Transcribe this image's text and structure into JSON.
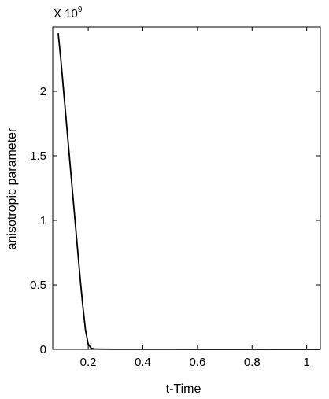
{
  "chart_data": {
    "type": "line",
    "title": "",
    "xlabel": "t-Time",
    "ylabel": "anisotropic parameter",
    "y_multiplier": {
      "base": "X 10",
      "exponent": "9"
    },
    "xlim": [
      0.07,
      1.05
    ],
    "ylim": [
      0,
      2.5
    ],
    "x_ticks": [
      0.2,
      0.4,
      0.6,
      0.8,
      1.0
    ],
    "x_tick_labels": [
      "0.2",
      "0.4",
      "0.6",
      "0.8",
      "1"
    ],
    "y_ticks": [
      0,
      0.5,
      1,
      1.5,
      2
    ],
    "y_tick_labels": [
      "0",
      "0.5",
      "1",
      "1.5",
      "2"
    ],
    "grid": false,
    "series": [
      {
        "color": "#000000",
        "x": [
          0.09,
          0.1,
          0.11,
          0.12,
          0.13,
          0.14,
          0.15,
          0.16,
          0.17,
          0.18,
          0.19,
          0.2,
          0.21,
          0.22,
          0.25,
          0.3,
          0.4,
          0.5,
          0.6,
          0.7,
          0.8,
          0.9,
          1.0,
          1.05
        ],
        "y": [
          2.45,
          2.24,
          2.0,
          1.76,
          1.52,
          1.28,
          1.04,
          0.8,
          0.56,
          0.34,
          0.15,
          0.04,
          0.01,
          0.003,
          0.0015,
          0.001,
          0.0008,
          0.0006,
          0.0005,
          0.0004,
          0.0003,
          0.0002,
          0.0001,
          0.0001
        ]
      }
    ]
  }
}
